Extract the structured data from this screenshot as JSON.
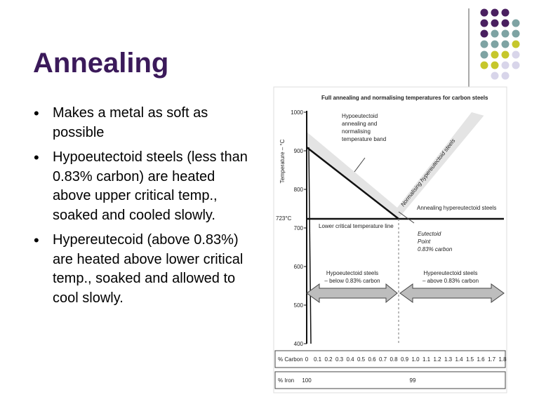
{
  "title": "Annealing",
  "bullets": [
    "Makes a metal as soft as possible",
    "Hypoeutectoid steels (less than 0.83% carbon) are heated above upper critical temp., soaked and cooled slowly.",
    "Hypereutecoid (above 0.83%) are heated above lower critical temp., soaked and allowed to cool slowly."
  ],
  "diagram": {
    "title": "Full annealing and normalising temperatures for carbon steels",
    "y_axis_label": "Temperature – °C",
    "temp_ticks": [
      "1000",
      "900",
      "800",
      "700",
      "600",
      "500",
      "400"
    ],
    "critical_temp": "723°C",
    "band_label": [
      "Hypoeutectoid",
      "annealing and",
      "normalising",
      "temperature band"
    ],
    "normalising_label": "Normalising hypereutectoid steels",
    "annealing_label": "Annealing hypereutectoid steels",
    "lower_line_label": "Lower critical temperature line",
    "eutectoid_label": [
      "Eutectoid",
      "Point",
      "0.83% carbon"
    ],
    "hypo_label": [
      "Hypoeutectoid steels",
      "– below 0.83% carbon"
    ],
    "hyper_label": [
      "Hypereutectoid steels",
      "– above 0.83% carbon"
    ],
    "carbon_axis": {
      "label": "% Carbon",
      "ticks": [
        "0",
        "0.1",
        "0.2",
        "0.3",
        "0.4",
        "0.5",
        "0.6",
        "0.7",
        "0.8",
        "0.9",
        "1.0",
        "1.1",
        "1.2",
        "1.3",
        "1.4",
        "1.5",
        "1.6",
        "1.7",
        "1.8"
      ]
    },
    "iron_axis": {
      "label": "% Iron",
      "ticks": [
        "100",
        "99"
      ]
    }
  }
}
